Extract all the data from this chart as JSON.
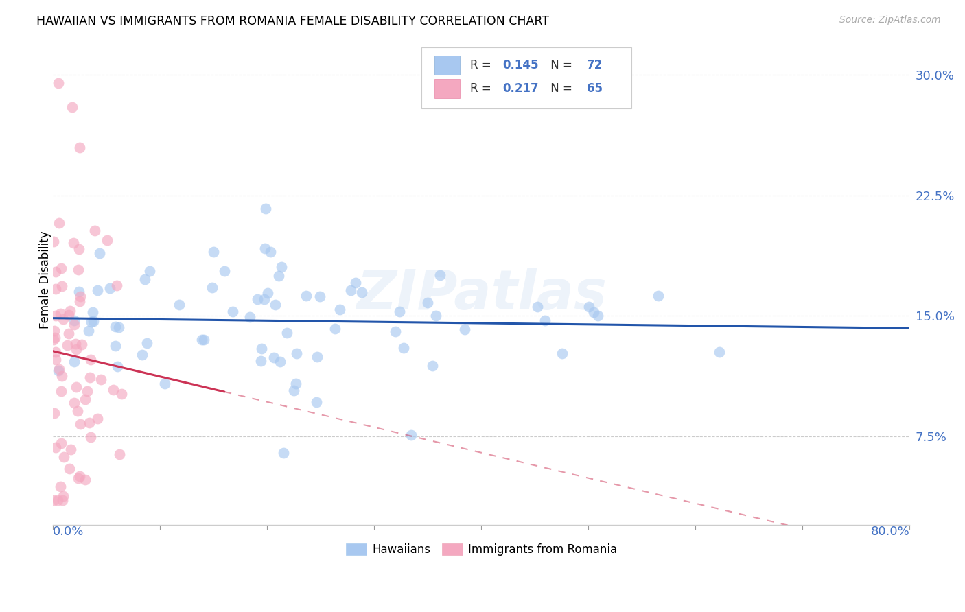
{
  "title": "HAWAIIAN VS IMMIGRANTS FROM ROMANIA FEMALE DISABILITY CORRELATION CHART",
  "source": "Source: ZipAtlas.com",
  "ylabel": "Female Disability",
  "yticks": [
    0.075,
    0.15,
    0.225,
    0.3
  ],
  "ytick_labels": [
    "7.5%",
    "15.0%",
    "22.5%",
    "30.0%"
  ],
  "xmin": 0.0,
  "xmax": 0.8,
  "ymin": 0.02,
  "ymax": 0.325,
  "watermark": "ZIPatlas",
  "hawaiian_color": "#a8c8f0",
  "romania_color": "#f4a8c0",
  "hawaii_line_color": "#2255aa",
  "romania_line_color": "#cc3355",
  "romania_line_solid_end": 0.16,
  "hawaii_r": 0.145,
  "hawaii_n": 72,
  "romania_r": 0.217,
  "romania_n": 65,
  "legend_r_color": "#4472c4",
  "legend_n_color_hawaii": "#4472c4",
  "legend_n_color_romania": "#cc3355",
  "xtick_positions": [
    0.0,
    0.1,
    0.2,
    0.3,
    0.4,
    0.5,
    0.6,
    0.7,
    0.8
  ],
  "xtick_label_left": "0.0%",
  "xtick_label_right": "80.0%"
}
